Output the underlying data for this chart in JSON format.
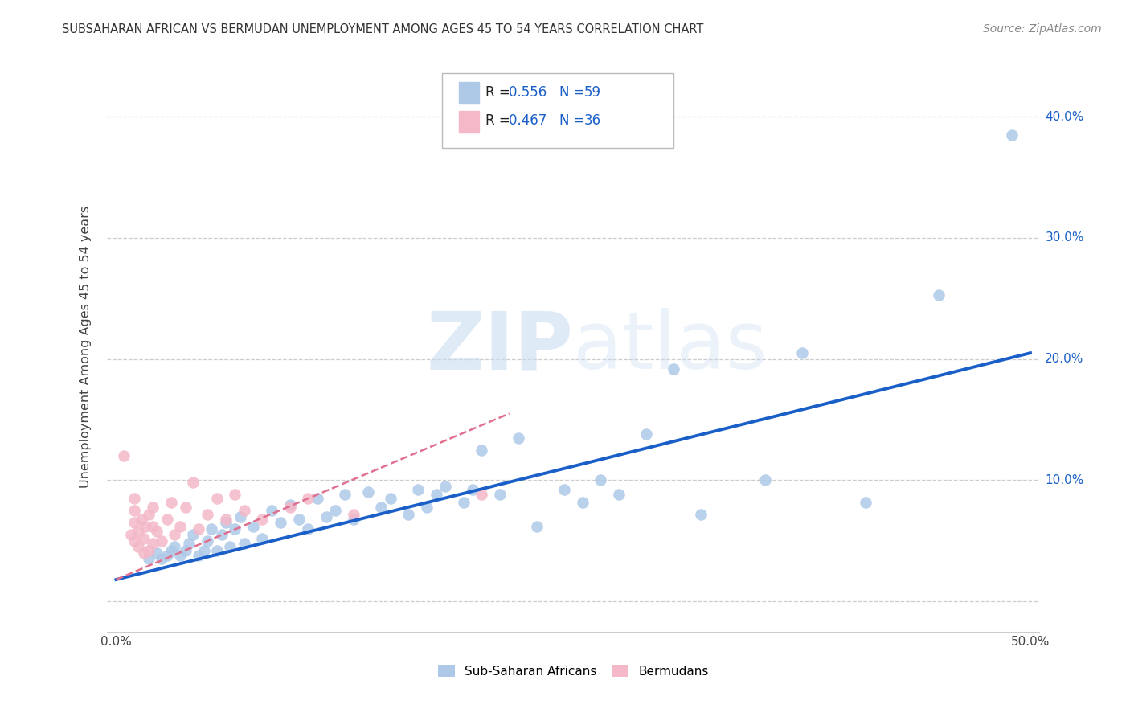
{
  "title": "SUBSAHARAN AFRICAN VS BERMUDAN UNEMPLOYMENT AMONG AGES 45 TO 54 YEARS CORRELATION CHART",
  "source": "Source: ZipAtlas.com",
  "ylabel": "Unemployment Among Ages 45 to 54 years",
  "xlim": [
    -0.005,
    0.505
  ],
  "ylim": [
    -0.025,
    0.445
  ],
  "xticks": [
    0.0,
    0.1,
    0.2,
    0.3,
    0.4,
    0.5
  ],
  "yticks": [
    0.0,
    0.1,
    0.2,
    0.3,
    0.4
  ],
  "xtick_labels": [
    "0.0%",
    "",
    "",
    "",
    "",
    "50.0%"
  ],
  "ytick_labels": [
    "",
    "10.0%",
    "20.0%",
    "30.0%",
    "40.0%"
  ],
  "legend_r1": "0.556",
  "legend_n1": "59",
  "legend_r2": "0.467",
  "legend_n2": "36",
  "legend_label1": "Sub-Saharan Africans",
  "legend_label2": "Bermudans",
  "blue_color": "#AEC9E8",
  "pink_color": "#F4B8C8",
  "blue_line_color": "#1A5FC8",
  "pink_line_color": "#E07090",
  "watermark_zip": "ZIP",
  "watermark_atlas": "atlas",
  "blue_scatter_x": [
    0.018,
    0.022,
    0.025,
    0.028,
    0.03,
    0.032,
    0.035,
    0.038,
    0.04,
    0.042,
    0.045,
    0.048,
    0.05,
    0.052,
    0.055,
    0.058,
    0.06,
    0.062,
    0.065,
    0.068,
    0.07,
    0.075,
    0.08,
    0.085,
    0.09,
    0.095,
    0.1,
    0.105,
    0.11,
    0.115,
    0.12,
    0.125,
    0.13,
    0.138,
    0.145,
    0.15,
    0.16,
    0.165,
    0.17,
    0.175,
    0.18,
    0.19,
    0.195,
    0.2,
    0.21,
    0.22,
    0.23,
    0.245,
    0.255,
    0.265,
    0.275,
    0.29,
    0.305,
    0.32,
    0.355,
    0.375,
    0.41,
    0.45,
    0.49
  ],
  "blue_scatter_y": [
    0.035,
    0.04,
    0.035,
    0.038,
    0.042,
    0.045,
    0.038,
    0.042,
    0.048,
    0.055,
    0.038,
    0.042,
    0.05,
    0.06,
    0.042,
    0.055,
    0.065,
    0.045,
    0.06,
    0.07,
    0.048,
    0.062,
    0.052,
    0.075,
    0.065,
    0.08,
    0.068,
    0.06,
    0.085,
    0.07,
    0.075,
    0.088,
    0.068,
    0.09,
    0.078,
    0.085,
    0.072,
    0.092,
    0.078,
    0.088,
    0.095,
    0.082,
    0.092,
    0.125,
    0.088,
    0.135,
    0.062,
    0.092,
    0.082,
    0.1,
    0.088,
    0.138,
    0.192,
    0.072,
    0.1,
    0.205,
    0.082,
    0.253,
    0.385
  ],
  "pink_scatter_x": [
    0.004,
    0.008,
    0.01,
    0.01,
    0.01,
    0.01,
    0.012,
    0.012,
    0.014,
    0.015,
    0.015,
    0.016,
    0.018,
    0.018,
    0.02,
    0.02,
    0.02,
    0.022,
    0.025,
    0.028,
    0.03,
    0.032,
    0.035,
    0.038,
    0.042,
    0.045,
    0.05,
    0.055,
    0.06,
    0.065,
    0.07,
    0.08,
    0.095,
    0.105,
    0.13,
    0.2
  ],
  "pink_scatter_y": [
    0.12,
    0.055,
    0.05,
    0.065,
    0.075,
    0.085,
    0.045,
    0.058,
    0.068,
    0.04,
    0.052,
    0.062,
    0.042,
    0.072,
    0.048,
    0.062,
    0.078,
    0.058,
    0.05,
    0.068,
    0.082,
    0.055,
    0.062,
    0.078,
    0.098,
    0.06,
    0.072,
    0.085,
    0.068,
    0.088,
    0.075,
    0.068,
    0.078,
    0.085,
    0.072,
    0.088
  ],
  "blue_line_x": [
    0.0,
    0.5
  ],
  "blue_line_y": [
    0.018,
    0.205
  ],
  "pink_line_x": [
    0.0,
    0.215
  ],
  "pink_line_y": [
    0.018,
    0.155
  ]
}
